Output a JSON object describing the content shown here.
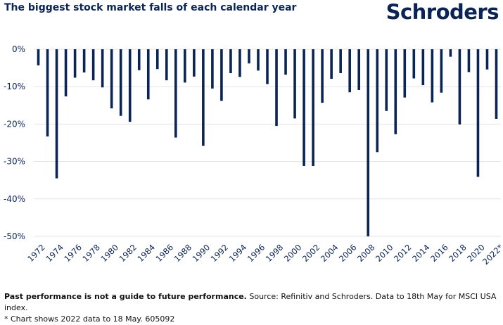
{
  "header": {
    "title": "The biggest stock market falls of each calendar year",
    "logo_text": "Schroders"
  },
  "footer": {
    "bold_text": "Past performance is not a guide to future performance.",
    "source_text": " Source: Refinitiv and Schroders. Data to 18th May for MSCI USA index.",
    "note_text": "* Chart shows 2022 data to 18 May. 605092"
  },
  "colors": {
    "bar": "#0b2456",
    "grid": "#e3e3e3",
    "text": "#0b2456"
  },
  "chart_data": {
    "type": "bar",
    "title": "The biggest stock market falls of each calendar year",
    "xlabel": "",
    "ylabel": "",
    "ylim": [
      -50,
      0
    ],
    "yticks": [
      0,
      -10,
      -20,
      -30,
      -40,
      -50
    ],
    "ytick_labels": [
      "0%",
      "-10%",
      "-20%",
      "-30%",
      "-40%",
      "-50%"
    ],
    "grid": true,
    "categories": [
      "1972",
      "1973",
      "1974",
      "1975",
      "1976",
      "1977",
      "1978",
      "1979",
      "1980",
      "1981",
      "1982",
      "1983",
      "1984",
      "1985",
      "1986",
      "1987",
      "1988",
      "1989",
      "1990",
      "1991",
      "1992",
      "1993",
      "1994",
      "1995",
      "1996",
      "1997",
      "1998",
      "1999",
      "2000",
      "2001",
      "2002",
      "2003",
      "2004",
      "2005",
      "2006",
      "2007",
      "2008",
      "2009",
      "2010",
      "2011",
      "2012",
      "2013",
      "2014",
      "2015",
      "2016",
      "2017",
      "2018",
      "2019",
      "2020",
      "2021",
      "2022*"
    ],
    "xtick_labels": [
      "1972",
      "1974",
      "1976",
      "1978",
      "1980",
      "1982",
      "1984",
      "1986",
      "1988",
      "1990",
      "1992",
      "1994",
      "1996",
      "1998",
      "2000",
      "2002",
      "2004",
      "2006",
      "2008",
      "2010",
      "2012",
      "2014",
      "2016",
      "2018",
      "2020",
      "2022*"
    ],
    "values": [
      -4.3,
      -23.3,
      -34.5,
      -12.6,
      -7.6,
      -6.2,
      -8.3,
      -10.2,
      -15.8,
      -17.8,
      -19.4,
      -5.6,
      -13.4,
      -5.3,
      -8.3,
      -23.6,
      -8.9,
      -7.3,
      -25.8,
      -10.5,
      -13.8,
      -6.4,
      -7.4,
      -3.8,
      -5.7,
      -9.3,
      -20.5,
      -6.8,
      -18.5,
      -31.2,
      -31.2,
      -14.3,
      -7.9,
      -6.4,
      -11.5,
      -10.9,
      -50,
      -27.5,
      -16.5,
      -22.7,
      -12.9,
      -7.8,
      -9.6,
      -14.2,
      -11.6,
      -2.0,
      -20.1,
      -6.1,
      -34.1,
      -5.4,
      -18.6
    ]
  }
}
